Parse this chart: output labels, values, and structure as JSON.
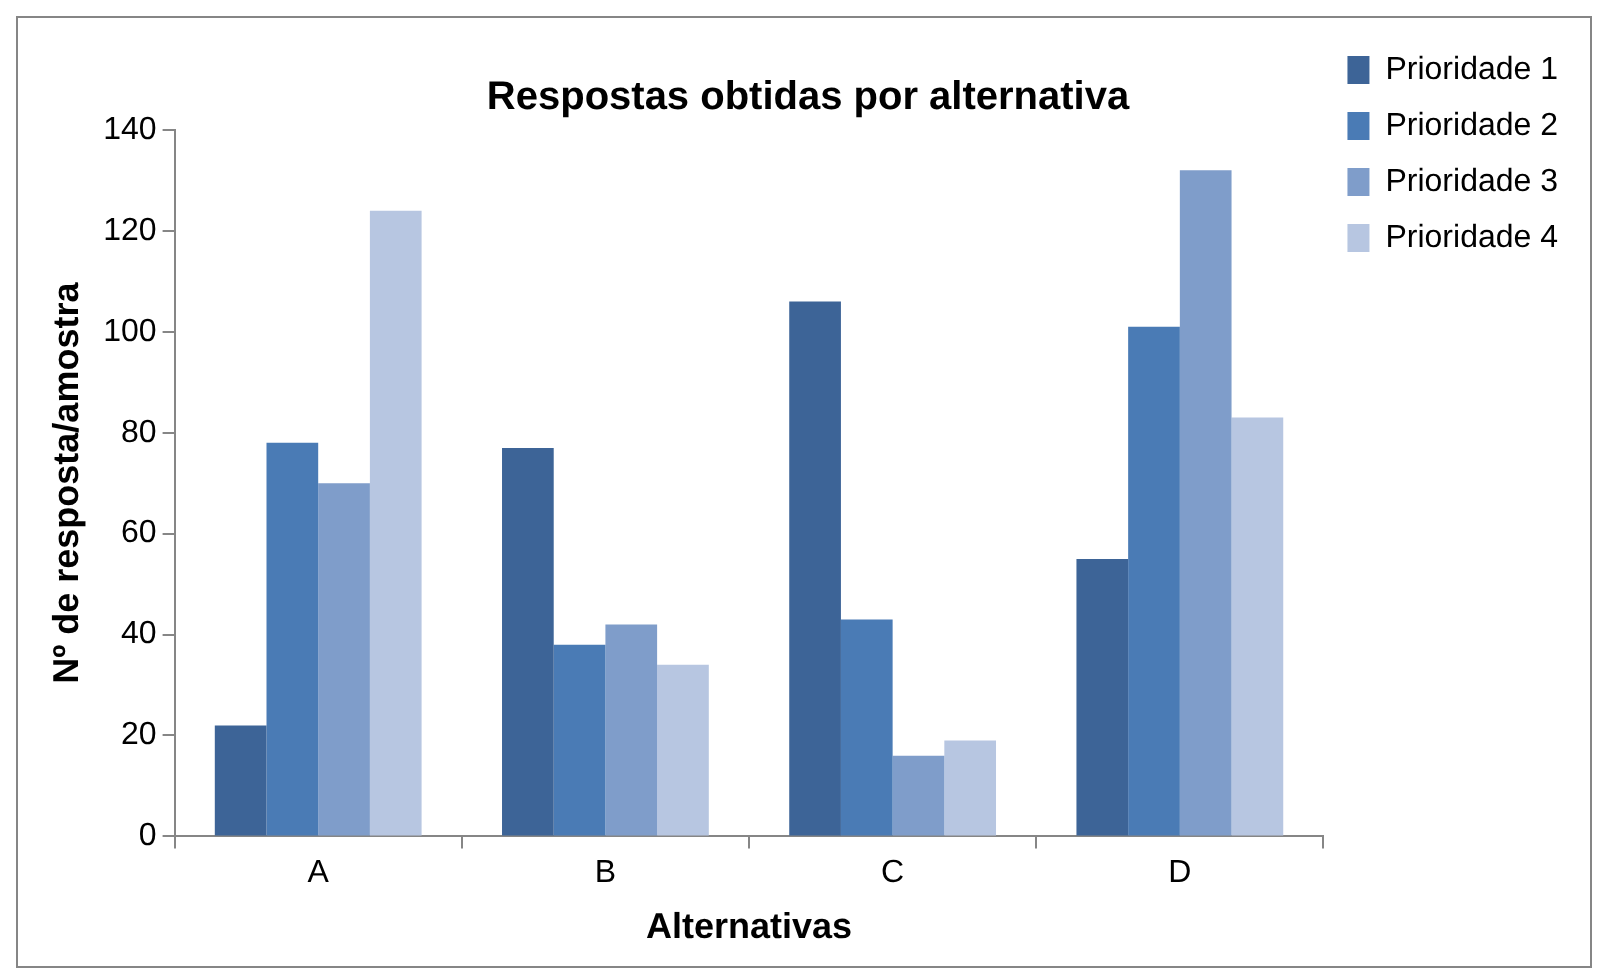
{
  "chart_data": {
    "type": "bar",
    "title": "Respostas obtidas por alternativa",
    "xlabel": "Alternativas",
    "ylabel": "Nº de resposta/amostra",
    "categories": [
      "A",
      "B",
      "C",
      "D"
    ],
    "series": [
      {
        "name": "Prioridade 1",
        "color": "#3d6497",
        "values": [
          22,
          77,
          106,
          55
        ]
      },
      {
        "name": "Prioridade 2",
        "color": "#4a7bb5",
        "values": [
          78,
          38,
          43,
          101
        ]
      },
      {
        "name": "Prioridade 3",
        "color": "#7f9dca",
        "values": [
          70,
          42,
          16,
          132
        ]
      },
      {
        "name": "Prioridade 4",
        "color": "#b7c6e1",
        "values": [
          124,
          34,
          19,
          83
        ]
      }
    ],
    "ylim": [
      0,
      140
    ],
    "yticks": [
      0,
      20,
      40,
      60,
      80,
      100,
      120,
      140
    ],
    "grid": false,
    "legend": "top right"
  }
}
